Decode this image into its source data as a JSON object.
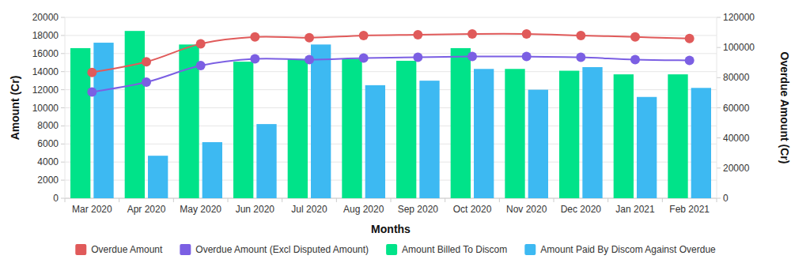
{
  "chart_data": {
    "type": "bar",
    "x_label": "Months",
    "y_label": "Amount (Cr)",
    "y2_label": "Overdue Amount (Cr)",
    "categories": [
      "Mar 2020",
      "Apr 2020",
      "May 2020",
      "Jun 2020",
      "Jul 2020",
      "Aug 2020",
      "Sep 2020",
      "Oct 2020",
      "Nov 2020",
      "Dec 2020",
      "Jan 2021",
      "Feb 2021"
    ],
    "series": [
      {
        "name": "Overdue Amount",
        "type": "line",
        "axis": "y2",
        "color": "#e05a5a",
        "marker": "circle",
        "line_style": "smooth",
        "values": [
          83500,
          90500,
          102500,
          107000,
          106500,
          108000,
          108500,
          109000,
          109000,
          108000,
          107000,
          106000
        ]
      },
      {
        "name": "Overdue Amount (Excl Disputed Amount)",
        "type": "line",
        "axis": "y2",
        "color": "#7b5fe3",
        "marker": "circle",
        "line_style": "smooth",
        "values": [
          70500,
          77000,
          88000,
          92500,
          92000,
          93000,
          93500,
          94000,
          94000,
          93500,
          92000,
          91500
        ]
      },
      {
        "name": "Amount Billed To Discom",
        "type": "bar",
        "color": "#00e389",
        "values": [
          16600,
          18500,
          17000,
          15100,
          15400,
          15400,
          15200,
          16600,
          14300,
          14100,
          13700,
          13700
        ]
      },
      {
        "name": "Amount Paid By Discom Against Overdue",
        "type": "bar",
        "color": "#3db9f2",
        "values": [
          17200,
          4700,
          6200,
          8200,
          17000,
          12500,
          13000,
          14300,
          12000,
          14500,
          11200,
          12200
        ]
      }
    ],
    "ylim": [
      0,
      20000
    ],
    "yticks": [
      0,
      2000,
      4000,
      6000,
      8000,
      10000,
      12000,
      14000,
      16000,
      18000,
      20000
    ],
    "y2lim": [
      0,
      120000
    ],
    "y2ticks": [
      0,
      20000,
      40000,
      60000,
      80000,
      100000,
      120000
    ],
    "grid": true,
    "legend": "bottom"
  }
}
